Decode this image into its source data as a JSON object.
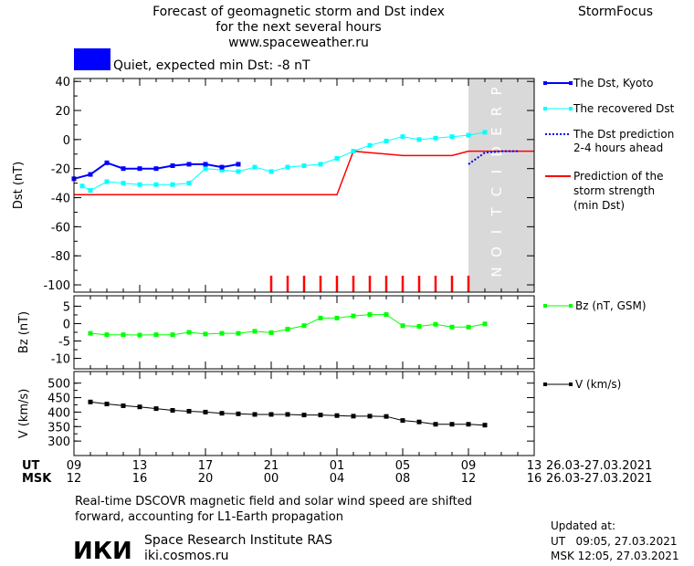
{
  "header": {
    "title_lines": [
      "Forecast of geomagnetic storm and Dst index",
      "for the next several hours",
      "www.spaceweather.ru"
    ],
    "brand": "StormFocus",
    "status_text": "Quiet, expected min Dst: -8 nT",
    "status_color": "#0000ff"
  },
  "prediction_label": "PREDICTION",
  "legend": {
    "dst_kyoto": "The Dst, Kyoto",
    "dst_recovered": "The recovered Dst",
    "dst_prediction_lines": [
      "The Dst prediction",
      "2-4 hours ahead"
    ],
    "storm_strength_lines": [
      "Prediction of the",
      "storm strength",
      "(min Dst)"
    ],
    "bz": "Bz (nT, GSM)",
    "v": "V (km/s)"
  },
  "colors": {
    "dst_kyoto": "#0000ff",
    "dst_recovered": "#00ffff",
    "dst_prediction": "#0000ff",
    "storm_strength": "#ff0000",
    "bz": "#00ff00",
    "v": "#000000",
    "prediction_zone": "#d9d9d9",
    "ticks_red": "#ff0000"
  },
  "time_axis": {
    "ut_label": "UT",
    "msk_label": "MSK",
    "ut_ticks": [
      "09",
      "13",
      "17",
      "21",
      "01",
      "05",
      "09",
      "13"
    ],
    "msk_ticks": [
      "12",
      "16",
      "20",
      "00",
      "04",
      "08",
      "12",
      "16"
    ],
    "ut_date_range": "26.03-27.03.2021",
    "msk_date_range": "26.03-27.03.2021"
  },
  "footer": {
    "note_lines": [
      "Real-time DSCOVR magnetic field and solar wind speed are shifted",
      "forward, accounting for L1-Earth propagation"
    ],
    "logo_text": "ИКИ",
    "institute": "Space Research Institute RAS",
    "website": "iki.cosmos.ru",
    "updated_label": "Updated at:",
    "updated_ut": "UT   09:05, 27.03.2021",
    "updated_msk": "MSK 12:05, 27.03.2021"
  },
  "chart_data": [
    {
      "type": "line",
      "ylabel": "Dst (nT)",
      "xlim": [
        9,
        37
      ],
      "ylim": [
        -105,
        42
      ],
      "yticks": [
        40,
        20,
        0,
        -20,
        -40,
        -60,
        -80,
        -100
      ],
      "prediction_start_x": 33,
      "red_tick_x": [
        21,
        22,
        23,
        24,
        25,
        26,
        27,
        28,
        29,
        30,
        31,
        32,
        33
      ],
      "series": [
        {
          "name": "The Dst, Kyoto",
          "x": [
            9,
            10,
            11,
            12,
            13,
            14,
            15,
            16,
            17,
            18,
            19
          ],
          "y": [
            -27,
            -24,
            -16,
            -20,
            -20,
            -20,
            -18,
            -17,
            -17,
            -19,
            -17
          ]
        },
        {
          "name": "The recovered Dst",
          "x": [
            9.5,
            10,
            11,
            12,
            13,
            14,
            15,
            16,
            17,
            18,
            19,
            20,
            21,
            22,
            23,
            24,
            25,
            26,
            27,
            28,
            29,
            30,
            31,
            32,
            33,
            34
          ],
          "y": [
            -32,
            -35,
            -29,
            -30,
            -31,
            -31,
            -31,
            -30,
            -20,
            -21,
            -22,
            -19,
            -22,
            -19,
            -18,
            -17,
            -13,
            -8,
            -4,
            -1,
            2,
            0,
            1,
            2,
            3,
            5
          ]
        },
        {
          "name": "The Dst prediction",
          "x": [
            33,
            34,
            35,
            36
          ],
          "y": [
            -17,
            -9,
            -8,
            -8
          ]
        },
        {
          "name": "Prediction of the storm strength",
          "x": [
            9,
            25,
            26,
            27,
            28,
            29,
            30,
            31,
            32,
            33,
            37
          ],
          "y": [
            -38,
            -38,
            -8,
            -9,
            -10,
            -11,
            -11,
            -11,
            -11,
            -8,
            -8
          ]
        }
      ]
    },
    {
      "type": "line",
      "ylabel": "Bz (nT)",
      "xlim": [
        9,
        37
      ],
      "ylim": [
        -13,
        8
      ],
      "yticks": [
        5,
        0,
        -5,
        -10
      ],
      "series": [
        {
          "name": "Bz (nT, GSM)",
          "x": [
            10,
            11,
            12,
            13,
            14,
            15,
            16,
            17,
            18,
            19,
            20,
            21,
            22,
            23,
            24,
            25,
            26,
            27,
            28,
            29,
            30,
            31,
            32,
            33,
            34
          ],
          "y": [
            -2.8,
            -3.2,
            -3.2,
            -3.3,
            -3.2,
            -3.2,
            -2.5,
            -3.0,
            -2.8,
            -2.8,
            -2.2,
            -2.6,
            -1.6,
            -0.6,
            1.6,
            1.6,
            2.2,
            2.6,
            2.6,
            -0.6,
            -0.8,
            -0.2,
            -1.0,
            -1.0,
            -0.1
          ]
        }
      ]
    },
    {
      "type": "line",
      "ylabel": "V (km/s)",
      "xlim": [
        9,
        37
      ],
      "ylim": [
        250,
        540
      ],
      "yticks": [
        500,
        450,
        400,
        350,
        300
      ],
      "series": [
        {
          "name": "V (km/s)",
          "x": [
            10,
            11,
            12,
            13,
            14,
            15,
            16,
            17,
            18,
            19,
            20,
            21,
            22,
            23,
            24,
            25,
            26,
            27,
            28,
            29,
            30,
            31,
            32,
            33,
            34
          ],
          "y": [
            435,
            428,
            422,
            418,
            412,
            406,
            403,
            400,
            396,
            394,
            392,
            392,
            392,
            390,
            390,
            388,
            386,
            386,
            385,
            371,
            366,
            358,
            358,
            358,
            355
          ]
        }
      ]
    }
  ]
}
